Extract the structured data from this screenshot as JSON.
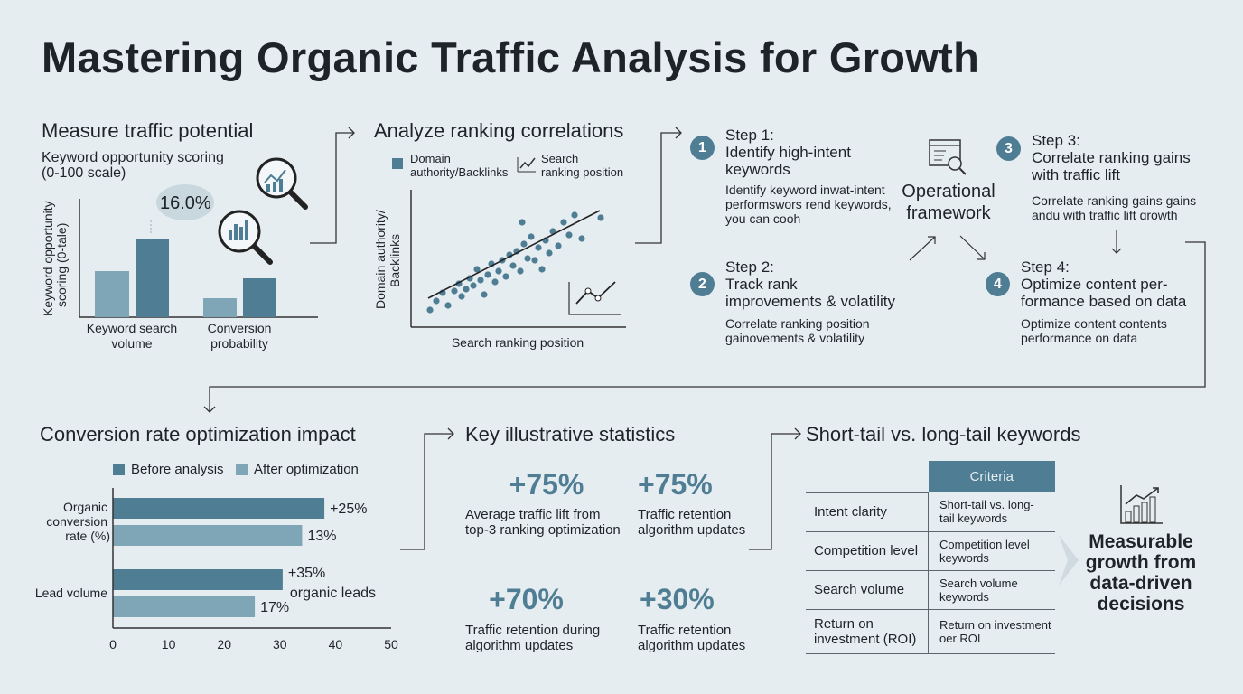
{
  "title": "Mastering Organic Traffic Analysis for Growth",
  "panel1": {
    "heading": "Measure traffic potential",
    "subheading_line1": "Keyword opportunity scoring",
    "subheading_line2": "(0-100 scale)",
    "y_label_line1": "Keyword opportunity",
    "y_label_line2": "scoring (0-tale)",
    "callout": "16.0%",
    "groups": [
      {
        "label_line1": "Keyword search",
        "label_line2": "volume"
      },
      {
        "label_line1": "Conversion",
        "label_line2": "probability"
      }
    ],
    "icons": [
      "magnifier-line-chart-icon",
      "magnifier-bar-chart-icon"
    ]
  },
  "panel2": {
    "heading": "Analyze ranking correlations",
    "legend": [
      {
        "line1": "Domain",
        "line2": "authority/Backlinks"
      },
      {
        "line1": "Search",
        "line2": "ranking position"
      }
    ],
    "y_label_line1": "Domain authority/",
    "y_label_line2": "Backlinks",
    "x_label": "Search ranking position"
  },
  "framework": {
    "center_line1": "Operational",
    "center_line2": "framework",
    "steps": [
      {
        "num": "1",
        "title_line1": "Step 1:",
        "title_line2": "Identify high-intent",
        "title_line3": "keywords",
        "desc_line1": "Identify keyword inwat-intent",
        "desc_line2": "performswors rend keywords,",
        "desc_line3": "you can cooh"
      },
      {
        "num": "2",
        "title_line1": "Step 2:",
        "title_line2": "Track rank",
        "title_line3": "improvements & volatility",
        "desc_line1": "Correlate ranking position",
        "desc_line2": "gainovements & volatility",
        "desc_line3": ""
      },
      {
        "num": "3",
        "title_line1": "Step 3:",
        "title_line2": "Correlate ranking gains",
        "title_line3": "with traffic lift",
        "desc_line1": "Correlate ranking gains gains",
        "desc_line2": "andu with traffic lift ɑrowth",
        "desc_line3": ""
      },
      {
        "num": "4",
        "title_line1": "Step 4:",
        "title_line2": "Optimize content per-",
        "title_line3": "formance based on data",
        "desc_line1": "Optimize content contents",
        "desc_line2": "performance on data",
        "desc_line3": ""
      }
    ]
  },
  "chart_data": {
    "type": "bar",
    "title": "Conversion rate optimization impact",
    "orientation": "horizontal",
    "legend": [
      "Before analysis",
      "After optimization"
    ],
    "categories": [
      {
        "line1": "Organic",
        "line2": "conversion",
        "line3": "rate (%)"
      },
      {
        "line1": "Lead volume",
        "line2": "",
        "line3": ""
      }
    ],
    "series": [
      {
        "name": "Before analysis",
        "values": [
          38,
          30.5
        ],
        "labels": [
          "+25%",
          "+35%"
        ],
        "label2": [
          "",
          "organic leads"
        ]
      },
      {
        "name": "After optimization",
        "values": [
          34,
          25.5
        ],
        "labels": [
          "13%",
          "17%"
        ],
        "label2": [
          "",
          ""
        ]
      }
    ],
    "xlim": [
      0,
      50
    ],
    "xticks": [
      "0",
      "10",
      "20",
      "30",
      "40",
      "50"
    ],
    "colors": {
      "before": "#4f7d94",
      "after": "#7ea6b6"
    }
  },
  "stats": {
    "heading": "Key illustrative statistics",
    "items": [
      {
        "value": "+75%",
        "line1": "Average traffic lift from",
        "line2": "top-3 ranking optimization"
      },
      {
        "value": "+75%",
        "line1": "Traffic retention",
        "line2": "algorithm updates"
      },
      {
        "value": "+70%",
        "line1": "Traffic retention during",
        "line2": "algorithm updates"
      },
      {
        "value": "+30%",
        "line1": "Traffic retention",
        "line2": "algorithm updates"
      }
    ]
  },
  "keywords": {
    "heading": "Short-tail vs. long-tail keywords",
    "column_header": "Criteria",
    "rows": [
      {
        "label_line1": "Intent clarity",
        "label_line2": "",
        "value_line1": "Short-tail vs. long-",
        "value_line2": "tail keywords"
      },
      {
        "label_line1": "Competition level",
        "label_line2": "",
        "value_line1": "Competition level",
        "value_line2": "keywords"
      },
      {
        "label_line1": "Search volume",
        "label_line2": "",
        "value_line1": "Search volume",
        "value_line2": "keywords"
      },
      {
        "label_line1": "Return on",
        "label_line2": "investment (ROI)",
        "value_line1": "Return on investment",
        "value_line2": "oer ROI"
      }
    ]
  },
  "growth": {
    "line1": "Measurable",
    "line2": "growth from",
    "line3": "data-driven",
    "line4": "decisions"
  },
  "colors": {
    "accent": "#4f7d94",
    "light": "#7ea6b6",
    "background": "#e6edf1"
  }
}
